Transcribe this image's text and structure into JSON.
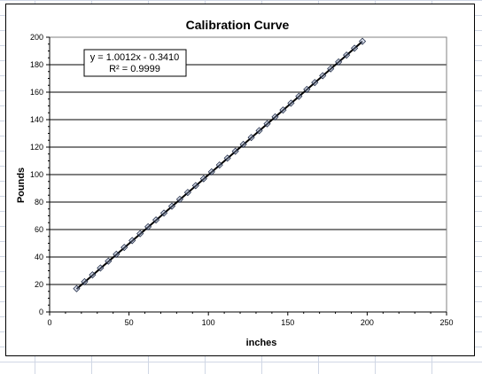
{
  "chart_data": {
    "type": "scatter",
    "title": "Calibration Curve",
    "xlabel": "inches",
    "ylabel": "Pounds",
    "xlim": [
      0,
      250
    ],
    "ylim": [
      0,
      200
    ],
    "x_ticks": [
      0,
      50,
      100,
      150,
      200,
      250
    ],
    "y_ticks": [
      0,
      20,
      40,
      60,
      80,
      100,
      120,
      140,
      160,
      180,
      200
    ],
    "grid": "horizontal major gridlines",
    "legend": "none",
    "trendline": {
      "type": "linear",
      "slope": 1.0012,
      "intercept": -0.341,
      "equation_label": "y = 1.0012x - 0.3410",
      "r2_label": "R² = 0.9999"
    },
    "series": [
      {
        "marker": "diamond",
        "marker_color": "#9db0d8",
        "x": [
          17,
          22,
          27,
          32,
          37,
          42,
          47,
          52,
          57,
          62,
          67,
          72,
          77,
          82,
          87,
          92,
          97,
          102,
          107,
          112,
          117,
          122,
          127,
          132,
          137,
          142,
          147,
          152,
          157,
          162,
          167,
          172,
          177,
          182,
          187,
          192,
          197
        ],
        "y": [
          17,
          22,
          27,
          32,
          37,
          42,
          47,
          52,
          57,
          62,
          67,
          72,
          77,
          82,
          87,
          92,
          97,
          102,
          107,
          112,
          117,
          122,
          127,
          132,
          137,
          142,
          147,
          152,
          157,
          162,
          167,
          172,
          177,
          182,
          187,
          192,
          197
        ]
      }
    ]
  }
}
